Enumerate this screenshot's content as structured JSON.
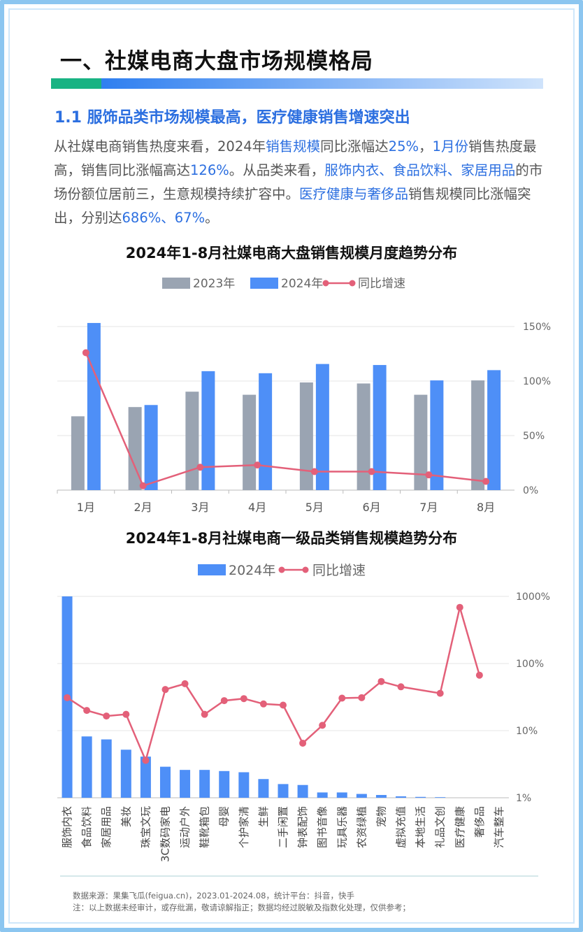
{
  "section": {
    "title": "一、社媒电商大盘市场规模格局"
  },
  "subsection": {
    "title": "1.1 服饰品类市场规模最高，医疗健康销售增速突出"
  },
  "paragraph": {
    "p1": "从社媒电商销售热度来看，2024年",
    "p2": "销售规模",
    "p3": "同比涨幅达",
    "p4": "25%",
    "p5": "，",
    "p6": "1月份",
    "p7": "销售热度最高，销售同比涨幅高达",
    "p8": "126%",
    "p9": "。从品类来看，",
    "p10": "服饰内衣、食品饮料、家居用品",
    "p11": "的市场份额位居前三，生意规模持续扩容中。",
    "p12": "医疗健康与奢侈品",
    "p13": "销售规模同比涨幅突出，分别达",
    "p14": "686%、67%",
    "p15": "。"
  },
  "colors": {
    "gray": "#9aa4b2",
    "blue": "#4e8ff7",
    "red": "#e36079",
    "accent": "#2c6fe0"
  },
  "chart_data": [
    {
      "type": "bar",
      "title": "2024年1-8月社媒电商大盘销售规模月度趋势分布",
      "categories": [
        "1月",
        "2月",
        "3月",
        "4月",
        "5月",
        "6月",
        "7月",
        "8月"
      ],
      "series": [
        {
          "name": "2023年",
          "type": "bar",
          "values": [
            72,
            81,
            96,
            93,
            105,
            104,
            93,
            107
          ]
        },
        {
          "name": "2024年",
          "type": "bar",
          "values": [
            163,
            83,
            116,
            114,
            123,
            122,
            107,
            117
          ]
        },
        {
          "name": "同比增速",
          "type": "line",
          "axis": "right",
          "values": [
            126,
            4,
            21,
            23,
            17,
            17,
            14,
            8
          ]
        }
      ],
      "y_right_ticks": [
        "150%",
        "100%",
        "50%",
        "0%"
      ],
      "y_right_range": [
        0,
        150
      ],
      "legend": "top",
      "grid": true
    },
    {
      "type": "bar",
      "title": "2024年1-8月社媒电商一级品类销售规模趋势分布",
      "categories": [
        "服饰内衣",
        "食品饮料",
        "家居用品",
        "美妆",
        "珠宝文玩",
        "3C数码家电",
        "运动户外",
        "鞋靴箱包",
        "母婴",
        "个护家清",
        "生鲜",
        "二手闲置",
        "钟表配饰",
        "图书音像",
        "玩具乐器",
        "农资绿植",
        "宠物",
        "虚拟充值",
        "本地生活",
        "礼品文创",
        "医疗健康",
        "奢侈品",
        "汽车整车"
      ],
      "series": [
        {
          "name": "2024年",
          "type": "bar",
          "scale": "log",
          "values": [
            1000,
            8.2,
            7.4,
            5.2,
            4.1,
            2.9,
            2.6,
            2.6,
            2.5,
            2.4,
            1.9,
            1.6,
            1.55,
            1.2,
            1.2,
            1.14,
            1.1,
            1.05,
            1.03,
            1.02,
            null,
            null,
            null
          ]
        },
        {
          "name": "同比增速",
          "type": "line",
          "axis": "right",
          "scale": "log",
          "values": [
            31,
            20,
            16.5,
            17.5,
            3.6,
            41,
            50,
            17.5,
            28,
            30,
            25,
            24,
            6.5,
            12,
            30.5,
            31,
            54,
            45,
            null,
            36,
            686,
            67,
            null
          ]
        }
      ],
      "y_right_ticks": [
        "1000%",
        "100%",
        "10%",
        "1%"
      ],
      "y_right_range": [
        1,
        1000
      ],
      "legend": "top",
      "grid": true
    }
  ],
  "footer": {
    "line1": "数据来源：果集飞瓜(feigua.cn)，2023.01-2024.08，统计平台：抖音，快手",
    "line2": "注：以上数据未经审计，或存纰漏，敬请谅解指正；数据均经过脱敏及指数化处理，仅供参考；"
  }
}
